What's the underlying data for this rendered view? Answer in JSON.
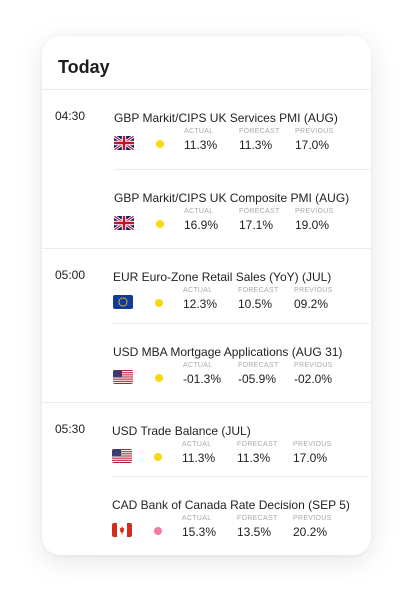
{
  "title": "Today",
  "labels": {
    "actual": "ACTUAL",
    "forecast": "FORECAST",
    "previous": "PREVIOUS"
  },
  "groups": [
    {
      "time": "04:30",
      "events": [
        {
          "title": "GBP Markit/CIPS UK Services PMI (AUG)",
          "flag": "uk-flag-icon",
          "impact_color": "#f5d90f",
          "actual": "11.3%",
          "forecast": "11.3%",
          "previous": "17.0%"
        },
        {
          "title": "GBP Markit/CIPS UK Composite PMI (AUG)",
          "flag": "uk-flag-icon",
          "impact_color": "#f5d90f",
          "actual": "16.9%",
          "forecast": "17.1%",
          "previous": "19.0%"
        }
      ]
    },
    {
      "time": "05:00",
      "events": [
        {
          "title": "EUR Euro-Zone Retail Sales (YoY) (JUL)",
          "flag": "eu-flag-icon",
          "impact_color": "#f5d90f",
          "actual": "12.3%",
          "forecast": "10.5%",
          "previous": "09.2%"
        },
        {
          "title": "USD MBA Mortgage Applications (AUG 31)",
          "flag": "us-flag-icon",
          "impact_color": "#f5d90f",
          "actual": "-01.3%",
          "forecast": "-05.9%",
          "previous": "-02.0%"
        }
      ]
    },
    {
      "time": "05:30",
      "events": [
        {
          "title": "USD Trade Balance (JUL)",
          "flag": "us-flag-icon",
          "impact_color": "#f5d90f",
          "actual": "11.3%",
          "forecast": "11.3%",
          "previous": "17.0%"
        },
        {
          "title": "CAD Bank of Canada Rate Decision (SEP 5)",
          "flag": "canada-flag-icon",
          "impact_color": "#f27ca0",
          "actual": "15.3%",
          "forecast": "13.5%",
          "previous": "20.2%"
        }
      ]
    }
  ]
}
